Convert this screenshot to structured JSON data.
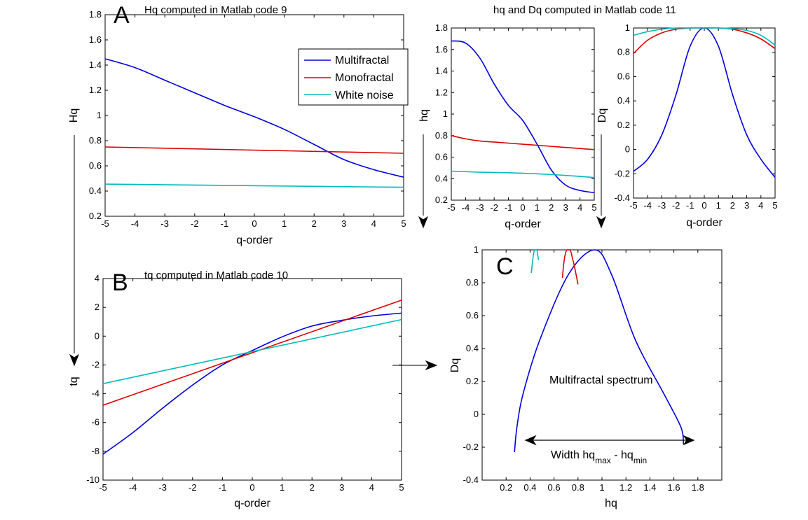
{
  "colors": {
    "multifractal": "#0000dd",
    "monofractal": "#dd0000",
    "white_noise": "#00bbbb"
  },
  "chart_data": [
    {
      "id": "A",
      "panel_letter": "A",
      "type": "line",
      "title": "Hq computed in Matlab code 9",
      "xlabel": "q-order",
      "ylabel": "Hq",
      "xlim": [
        -5,
        5
      ],
      "ylim": [
        0.2,
        1.8
      ],
      "xticks": [
        -5,
        -4,
        -3,
        -2,
        -1,
        0,
        1,
        2,
        3,
        4,
        5
      ],
      "yticks": [
        0.2,
        0.4,
        0.6,
        0.8,
        1,
        1.2,
        1.4,
        1.6,
        1.8
      ],
      "legend": {
        "position": "top-right",
        "entries": [
          "Multifractal",
          "Monofractal",
          "White noise"
        ]
      },
      "series": [
        {
          "name": "Multifractal",
          "color": "#0000dd",
          "x": [
            -5,
            -4,
            -3,
            -2,
            -1,
            0,
            1,
            2,
            3,
            4,
            5
          ],
          "y": [
            1.45,
            1.38,
            1.28,
            1.18,
            1.08,
            0.99,
            0.89,
            0.77,
            0.65,
            0.57,
            0.51
          ]
        },
        {
          "name": "Monofractal",
          "color": "#dd0000",
          "x": [
            -5,
            5
          ],
          "y": [
            0.75,
            0.7
          ]
        },
        {
          "name": "White noise",
          "color": "#00bbbb",
          "x": [
            -5,
            5
          ],
          "y": [
            0.455,
            0.43
          ]
        }
      ]
    },
    {
      "id": "B",
      "panel_letter": "B",
      "type": "line",
      "title": "tq computed in Matlab code 10",
      "xlabel": "q-order",
      "ylabel": "tq",
      "xlim": [
        -5,
        5
      ],
      "ylim": [
        -10,
        4
      ],
      "xticks": [
        -5,
        -4,
        -3,
        -2,
        -1,
        0,
        1,
        2,
        3,
        4,
        5
      ],
      "yticks": [
        -10,
        -8,
        -6,
        -4,
        -2,
        0,
        2,
        4
      ],
      "series": [
        {
          "color": "#0000dd",
          "x": [
            -5,
            -4,
            -3,
            -2,
            -1,
            0,
            1,
            2,
            3,
            4,
            5
          ],
          "y": [
            -8.2,
            -6.7,
            -5.0,
            -3.4,
            -2.0,
            -1.0,
            -0.05,
            0.7,
            1.1,
            1.4,
            1.6
          ]
        },
        {
          "color": "#dd0000",
          "x": [
            -5,
            5
          ],
          "y": [
            -4.8,
            2.5
          ]
        },
        {
          "color": "#00bbbb",
          "x": [
            -5,
            5
          ],
          "y": [
            -3.3,
            1.15
          ]
        }
      ]
    },
    {
      "id": "hq",
      "type": "line",
      "title": "hq and Dq computed in Matlab code 11",
      "xlabel": "q-order",
      "ylabel": "hq",
      "xlim": [
        -5,
        5
      ],
      "ylim": [
        0.2,
        1.8
      ],
      "xticks": [
        -5,
        -4,
        -3,
        -2,
        -1,
        0,
        1,
        2,
        3,
        4,
        5
      ],
      "yticks": [
        0.2,
        0.4,
        0.6,
        0.8,
        1,
        1.2,
        1.4,
        1.6,
        1.8
      ],
      "series": [
        {
          "color": "#0000dd",
          "x": [
            -5,
            -4,
            -3,
            -2,
            -1,
            0,
            1,
            2,
            3,
            4,
            5
          ],
          "y": [
            1.68,
            1.66,
            1.52,
            1.28,
            1.08,
            0.94,
            0.72,
            0.48,
            0.34,
            0.29,
            0.27
          ]
        },
        {
          "color": "#dd0000",
          "x": [
            -5,
            -4,
            -3,
            -2,
            -1,
            0,
            1,
            2,
            3,
            4,
            5
          ],
          "y": [
            0.8,
            0.77,
            0.75,
            0.74,
            0.73,
            0.72,
            0.71,
            0.7,
            0.69,
            0.68,
            0.67
          ]
        },
        {
          "color": "#00bbbb",
          "x": [
            -5,
            -3,
            -1,
            0,
            1,
            3,
            5
          ],
          "y": [
            0.47,
            0.46,
            0.455,
            0.45,
            0.445,
            0.43,
            0.41
          ]
        }
      ]
    },
    {
      "id": "Dq",
      "type": "line",
      "title": "",
      "xlabel": "q-order",
      "ylabel": "Dq",
      "xlim": [
        -5,
        5
      ],
      "ylim": [
        -0.4,
        1
      ],
      "xticks": [
        -5,
        -4,
        -3,
        -2,
        -1,
        0,
        1,
        2,
        3,
        4,
        5
      ],
      "yticks": [
        -0.4,
        -0.2,
        0,
        0.2,
        0.4,
        0.6,
        0.8,
        1
      ],
      "series": [
        {
          "color": "#0000dd",
          "x": [
            -5,
            -4,
            -3,
            -2,
            -1,
            0,
            1,
            2,
            3,
            4,
            5
          ],
          "y": [
            -0.18,
            -0.08,
            0.12,
            0.45,
            0.85,
            1.0,
            0.85,
            0.45,
            0.12,
            -0.08,
            -0.23
          ]
        },
        {
          "color": "#dd0000",
          "x": [
            -5,
            -4,
            -3,
            -2,
            -1,
            0,
            1,
            2,
            3,
            4,
            5
          ],
          "y": [
            0.79,
            0.9,
            0.96,
            0.99,
            1.0,
            1.0,
            1.0,
            0.99,
            0.96,
            0.91,
            0.83
          ]
        },
        {
          "color": "#00bbbb",
          "x": [
            -5,
            -4,
            -3,
            -2,
            -1,
            0,
            1,
            2,
            3,
            4,
            5
          ],
          "y": [
            0.94,
            0.97,
            0.99,
            1.0,
            1.0,
            1.0,
            1.0,
            0.995,
            0.98,
            0.94,
            0.86
          ]
        }
      ]
    },
    {
      "id": "C",
      "panel_letter": "C",
      "type": "line",
      "title": "",
      "xlabel": "hq",
      "ylabel": "Dq",
      "xlim": [
        0,
        2
      ],
      "ylim": [
        -0.4,
        1
      ],
      "xticks": [
        0.2,
        0.4,
        0.6,
        0.8,
        1,
        1.2,
        1.4,
        1.6,
        1.8
      ],
      "yticks": [
        -0.4,
        -0.2,
        0,
        0.2,
        0.4,
        0.6,
        0.8,
        1
      ],
      "annotation": "Multifractal spectrum",
      "width_label": {
        "main": "Width hq",
        "sub_max": "max",
        "sep": " - hq",
        "sub_min": "min"
      },
      "series": [
        {
          "color": "#0000dd",
          "x": [
            0.27,
            0.29,
            0.34,
            0.48,
            0.72,
            0.94,
            1.08,
            1.28,
            1.52,
            1.66,
            1.68
          ],
          "y": [
            -0.23,
            -0.08,
            0.12,
            0.45,
            0.85,
            1.0,
            0.85,
            0.45,
            0.12,
            -0.08,
            -0.18
          ]
        },
        {
          "color": "#dd0000",
          "x": [
            0.67,
            0.68,
            0.69,
            0.7,
            0.71,
            0.72,
            0.73,
            0.74,
            0.75,
            0.77,
            0.8
          ],
          "y": [
            0.83,
            0.91,
            0.96,
            0.99,
            1.0,
            1.0,
            1.0,
            0.99,
            0.96,
            0.9,
            0.79
          ]
        },
        {
          "color": "#00bbbb",
          "x": [
            0.41,
            0.43,
            0.445,
            0.45,
            0.455,
            0.46,
            0.47
          ],
          "y": [
            0.86,
            0.98,
            1.0,
            1.0,
            1.0,
            0.99,
            0.94
          ]
        }
      ]
    }
  ]
}
